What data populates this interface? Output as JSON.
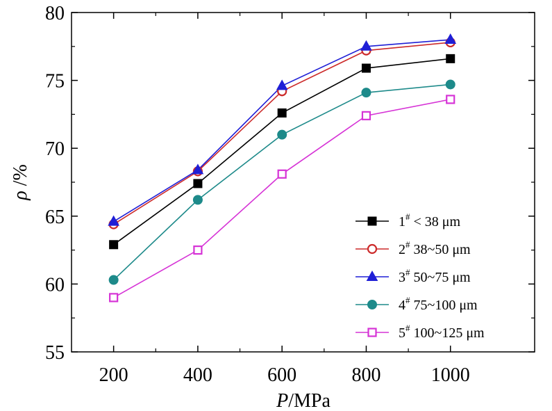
{
  "chart_data": {
    "type": "line",
    "x": [
      200,
      400,
      600,
      800,
      1000
    ],
    "xticks": [
      200,
      400,
      600,
      800,
      1000
    ],
    "xlim": [
      100,
      1200
    ],
    "ylim": [
      55,
      80
    ],
    "yticks": [
      55,
      60,
      65,
      70,
      75,
      80
    ],
    "xlabel_italic": "P",
    "xlabel_rest": "/MPa",
    "ylabel_italic": "ρ",
    "ylabel_rest": " /%",
    "legend_position": "lower-right",
    "series": [
      {
        "id": "s1",
        "label_main": "1",
        "label_sup": "#",
        "label_rest": " < 38 μm",
        "color": "#000000",
        "marker": "filled-square",
        "values": [
          62.9,
          67.4,
          72.6,
          75.9,
          76.6
        ]
      },
      {
        "id": "s2",
        "label_main": "2",
        "label_sup": "#",
        "label_rest": " 38~50 μm",
        "color": "#cc2a2a",
        "marker": "open-circle",
        "values": [
          64.4,
          68.3,
          74.2,
          77.2,
          77.8
        ]
      },
      {
        "id": "s3",
        "label_main": "3",
        "label_sup": "#",
        "label_rest": " 50~75 μm",
        "color": "#1f1fd6",
        "marker": "filled-triangle",
        "values": [
          64.6,
          68.4,
          74.6,
          77.5,
          78.0
        ]
      },
      {
        "id": "s4",
        "label_main": "4",
        "label_sup": "#",
        "label_rest": " 75~100 μm",
        "color": "#1d8a8a",
        "marker": "filled-circle",
        "values": [
          60.3,
          66.2,
          71.0,
          74.1,
          74.7
        ]
      },
      {
        "id": "s5",
        "label_main": "5",
        "label_sup": "#",
        "label_rest": " 100~125 μm",
        "color": "#d633d6",
        "marker": "open-square",
        "values": [
          59.0,
          62.5,
          68.1,
          72.4,
          73.6
        ]
      }
    ]
  }
}
